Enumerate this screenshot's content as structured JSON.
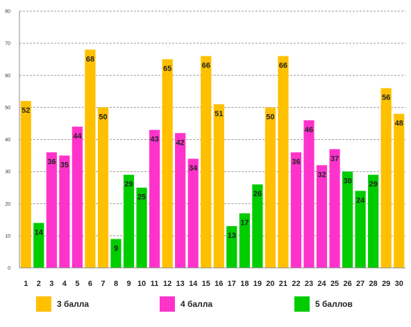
{
  "chart_data": {
    "type": "bar",
    "title": "",
    "xlabel": "",
    "ylabel": "",
    "ylim": [
      0,
      80
    ],
    "y_ticks": [
      0,
      10,
      20,
      30,
      40,
      50,
      60,
      70,
      80
    ],
    "grid": "horizontal dashed",
    "categories": [
      "1",
      "2",
      "3",
      "4",
      "5",
      "6",
      "7",
      "8",
      "9",
      "10",
      "11",
      "12",
      "13",
      "14",
      "15",
      "16",
      "17",
      "18",
      "19",
      "20",
      "21",
      "22",
      "23",
      "24",
      "25",
      "26",
      "27",
      "28",
      "29",
      "30"
    ],
    "values": [
      52,
      14,
      36,
      35,
      44,
      68,
      50,
      9,
      29,
      25,
      43,
      65,
      42,
      34,
      66,
      51,
      13,
      17,
      26,
      50,
      66,
      36,
      46,
      32,
      37,
      30,
      24,
      29,
      56,
      48
    ],
    "bar_series": [
      "3 балла",
      "5 баллов",
      "4 балла",
      "4 балла",
      "4 балла",
      "3 балла",
      "3 балла",
      "5 баллов",
      "5 баллов",
      "5 баллов",
      "4 балла",
      "3 балла",
      "4 балла",
      "4 балла",
      "3 балла",
      "3 балла",
      "5 баллов",
      "5 баллов",
      "5 баллов",
      "3 балла",
      "3 балла",
      "4 балла",
      "4 балла",
      "4 балла",
      "4 балла",
      "5 баллов",
      "5 баллов",
      "5 баллов",
      "3 балла",
      "3 балла"
    ],
    "legend": [
      {
        "name": "3 балла",
        "color": "#FFC000"
      },
      {
        "name": "4 балла",
        "color": "#FF33CC"
      },
      {
        "name": "5 баллов",
        "color": "#00CC00"
      }
    ],
    "legend_position": "bottom"
  }
}
